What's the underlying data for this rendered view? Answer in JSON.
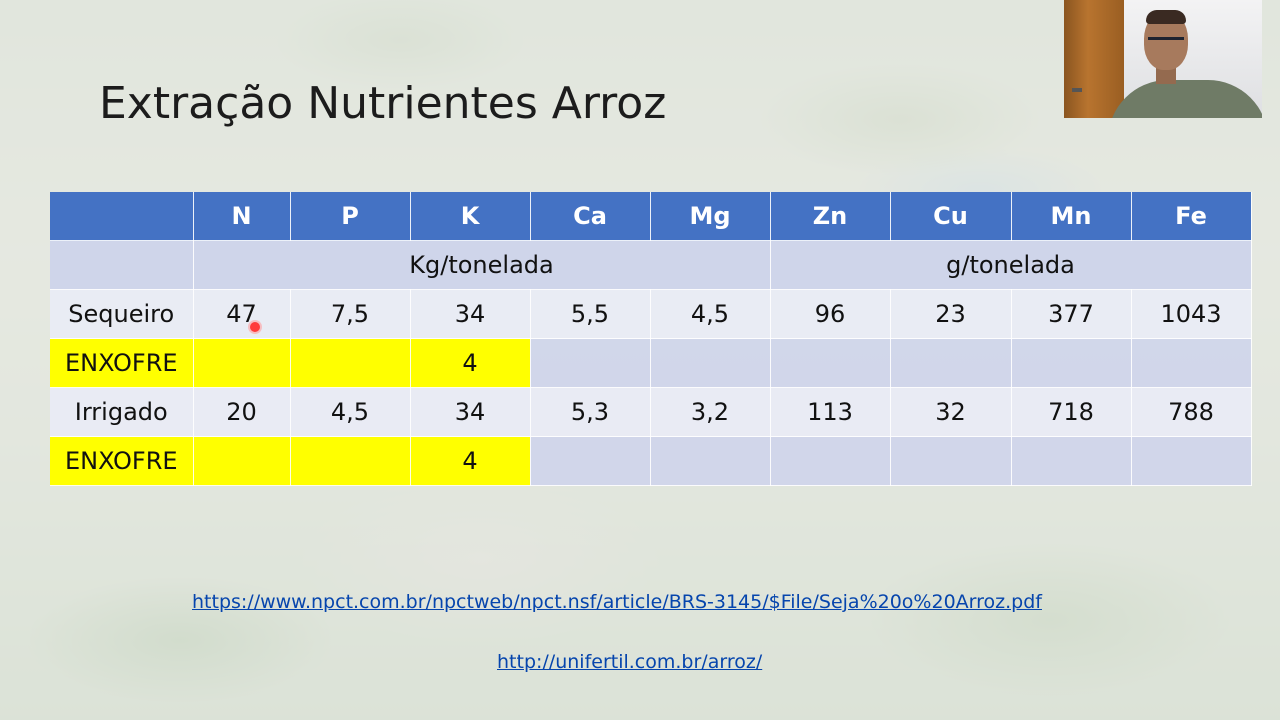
{
  "slide": {
    "title": "Extração Nutrientes Arroz"
  },
  "table": {
    "headers": [
      "",
      "N",
      "P",
      "K",
      "Ca",
      "Mg",
      "Zn",
      "Cu",
      "Mn",
      "Fe"
    ],
    "units": {
      "kg": "Kg/tonelada",
      "g": "g/tonelada"
    },
    "rows": [
      {
        "label": "Sequeiro",
        "values": [
          "47",
          "7,5",
          "34",
          "5,5",
          "4,5",
          "96",
          "23",
          "377",
          "1043"
        ]
      },
      {
        "label": "ENXOFRE",
        "values": [
          "",
          "",
          "4",
          "",
          "",
          "",
          "",
          "",
          ""
        ]
      },
      {
        "label": "Irrigado",
        "values": [
          "20",
          "4,5",
          "34",
          "5,3",
          "3,2",
          "113",
          "32",
          "718",
          "788"
        ]
      },
      {
        "label": "ENXOFRE",
        "values": [
          "",
          "",
          "4",
          "",
          "",
          "",
          "",
          "",
          ""
        ]
      }
    ]
  },
  "links": {
    "link1": "https://www.npct.com.br/npctweb/npct.nsf/article/BRS-3145/$File/Seja%20o%20Arroz.pdf",
    "link2": "http://unifertil.com.br/arroz/"
  },
  "colors": {
    "header_blue": "#4472c4",
    "highlight_yellow": "#ffff00",
    "pointer_red": "#ff3b3b"
  },
  "icons": {
    "pointer": "laser-pointer-dot",
    "webcam": "presenter-webcam-video"
  }
}
